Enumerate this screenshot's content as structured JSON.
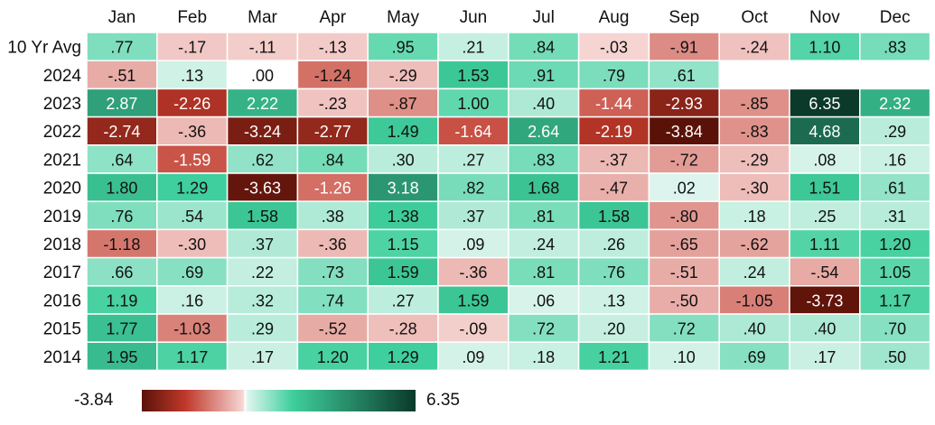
{
  "chart_data": {
    "type": "heatmap",
    "title": "",
    "xlabel": "",
    "ylabel": "",
    "months": [
      "Jan",
      "Feb",
      "Mar",
      "Apr",
      "May",
      "Jun",
      "Jul",
      "Aug",
      "Sep",
      "Oct",
      "Nov",
      "Dec"
    ],
    "rows": [
      "10 Yr Avg",
      "2024",
      "2023",
      "2022",
      "2021",
      "2020",
      "2019",
      "2018",
      "2017",
      "2016",
      "2015",
      "2014"
    ],
    "values": [
      [
        0.77,
        -0.17,
        -0.11,
        -0.13,
        0.95,
        0.21,
        0.84,
        -0.03,
        -0.91,
        -0.24,
        1.1,
        0.83
      ],
      [
        -0.51,
        0.13,
        0.0,
        -1.24,
        -0.29,
        1.53,
        0.91,
        0.79,
        0.61,
        null,
        null,
        null
      ],
      [
        2.87,
        -2.26,
        2.22,
        -0.23,
        -0.87,
        1.0,
        0.4,
        -1.44,
        -2.93,
        -0.85,
        6.35,
        2.32
      ],
      [
        -2.74,
        -0.36,
        -3.24,
        -2.77,
        1.49,
        -1.64,
        2.64,
        -2.19,
        -3.84,
        -0.83,
        4.68,
        0.29
      ],
      [
        0.64,
        -1.59,
        0.62,
        0.84,
        0.3,
        0.27,
        0.83,
        -0.37,
        -0.72,
        -0.29,
        0.08,
        0.16
      ],
      [
        1.8,
        1.29,
        -3.63,
        -1.26,
        3.18,
        0.82,
        1.68,
        -0.47,
        0.02,
        -0.3,
        1.51,
        0.61
      ],
      [
        0.76,
        0.54,
        1.58,
        0.38,
        1.38,
        0.37,
        0.81,
        1.58,
        -0.8,
        0.18,
        0.25,
        0.31
      ],
      [
        -1.18,
        -0.3,
        0.37,
        -0.36,
        1.15,
        0.09,
        0.24,
        0.26,
        -0.65,
        -0.62,
        1.11,
        1.2
      ],
      [
        0.66,
        0.69,
        0.22,
        0.73,
        1.59,
        -0.36,
        0.81,
        0.76,
        -0.51,
        0.24,
        -0.54,
        1.05
      ],
      [
        1.19,
        0.16,
        0.32,
        0.74,
        0.27,
        1.59,
        0.06,
        0.13,
        -0.5,
        -1.05,
        -3.73,
        1.17
      ],
      [
        1.77,
        -1.03,
        0.29,
        -0.52,
        -0.28,
        -0.09,
        0.72,
        0.2,
        0.72,
        0.4,
        0.4,
        0.7
      ],
      [
        1.95,
        1.17,
        0.17,
        1.2,
        1.29,
        0.09,
        0.18,
        1.21,
        0.1,
        0.69,
        0.17,
        0.5
      ]
    ],
    "labels": [
      [
        ".77",
        "-.17",
        "-.11",
        "-.13",
        ".95",
        ".21",
        ".84",
        "-.03",
        "-.91",
        "-.24",
        "1.10",
        ".83"
      ],
      [
        "-.51",
        ".13",
        ".00",
        "-1.24",
        "-.29",
        "1.53",
        ".91",
        ".79",
        ".61",
        "",
        "",
        ""
      ],
      [
        "2.87",
        "-2.26",
        "2.22",
        "-.23",
        "-.87",
        "1.00",
        ".40",
        "-1.44",
        "-2.93",
        "-.85",
        "6.35",
        "2.32"
      ],
      [
        "-2.74",
        "-.36",
        "-3.24",
        "-2.77",
        "1.49",
        "-1.64",
        "2.64",
        "-2.19",
        "-3.84",
        "-.83",
        "4.68",
        ".29"
      ],
      [
        ".64",
        "-1.59",
        ".62",
        ".84",
        ".30",
        ".27",
        ".83",
        "-.37",
        "-.72",
        "-.29",
        ".08",
        ".16"
      ],
      [
        "1.80",
        "1.29",
        "-3.63",
        "-1.26",
        "3.18",
        ".82",
        "1.68",
        "-.47",
        ".02",
        "-.30",
        "1.51",
        ".61"
      ],
      [
        ".76",
        ".54",
        "1.58",
        ".38",
        "1.38",
        ".37",
        ".81",
        "1.58",
        "-.80",
        ".18",
        ".25",
        ".31"
      ],
      [
        "-1.18",
        "-.30",
        ".37",
        "-.36",
        "1.15",
        ".09",
        ".24",
        ".26",
        "-.65",
        "-.62",
        "1.11",
        "1.20"
      ],
      [
        ".66",
        ".69",
        ".22",
        ".73",
        "1.59",
        "-.36",
        ".81",
        ".76",
        "-.51",
        ".24",
        "-.54",
        "1.05"
      ],
      [
        "1.19",
        ".16",
        ".32",
        ".74",
        ".27",
        "1.59",
        ".06",
        ".13",
        "-.50",
        "-1.05",
        "-3.73",
        "1.17"
      ],
      [
        "1.77",
        "-1.03",
        ".29",
        "-.52",
        "-.28",
        "-.09",
        ".72",
        ".20",
        ".72",
        ".40",
        ".40",
        ".70"
      ],
      [
        "1.95",
        "1.17",
        ".17",
        "1.20",
        "1.29",
        ".09",
        ".18",
        "1.21",
        ".10",
        ".69",
        ".17",
        ".50"
      ]
    ],
    "colorbar": {
      "min": -3.84,
      "max": 6.35,
      "min_label": "-3.84",
      "max_label": "6.35"
    },
    "colors": {
      "negative_dark": "#5a1208",
      "negative_mid": "#c0392b",
      "negative_light": "#f6d6d4",
      "zero": "#ffffff",
      "positive_light": "#dff5ee",
      "positive_mid": "#3fcf9d",
      "positive_dark": "#0b3a2a"
    }
  }
}
